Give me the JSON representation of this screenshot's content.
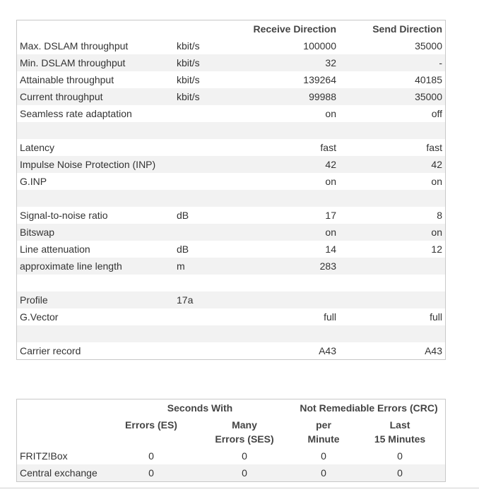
{
  "line_table": {
    "columns": [
      "Receive Direction",
      "Send Direction"
    ],
    "rows": [
      [
        "Max. DSLAM throughput",
        "kbit/s",
        100000,
        35000
      ],
      [
        "Min. DSLAM throughput",
        "kbit/s",
        32,
        "-"
      ],
      [
        "Attainable throughput",
        "kbit/s",
        139264,
        40185
      ],
      [
        "Current throughput",
        "kbit/s",
        99988,
        35000
      ],
      [
        "Seamless rate adaptation",
        null,
        "on",
        "off"
      ],
      [
        null,
        null,
        null,
        null
      ],
      [
        "Latency",
        null,
        "fast",
        "fast"
      ],
      [
        "Impulse Noise Protection (INP)",
        null,
        42,
        42
      ],
      [
        "G.INP",
        null,
        "on",
        "on"
      ],
      [
        null,
        null,
        null,
        null
      ],
      [
        "Signal-to-noise ratio",
        "dB",
        17,
        8
      ],
      [
        "Bitswap",
        null,
        "on",
        "on"
      ],
      [
        "Line attenuation",
        "dB",
        14,
        12
      ],
      [
        "approximate line length",
        "m",
        283,
        null
      ],
      [
        null,
        null,
        null,
        null
      ],
      [
        "Profile",
        "17a",
        null,
        null
      ],
      [
        "G.Vector",
        null,
        "full",
        "full"
      ],
      [
        null,
        null,
        null,
        null
      ],
      [
        "Carrier record",
        null,
        "A43",
        "A43"
      ]
    ]
  },
  "error_table": {
    "groups": [
      "Seconds With",
      "Not Remediable Errors (CRC)"
    ],
    "columns": [
      [
        "Errors (ES)"
      ],
      [
        "Many",
        "Errors (SES)"
      ],
      [
        "per",
        "Minute"
      ],
      [
        "Last",
        "15 Minutes"
      ]
    ],
    "rows": [
      [
        "FRITZ!Box",
        0,
        0,
        0,
        0
      ],
      [
        "Central exchange",
        0,
        0,
        0,
        0
      ]
    ]
  }
}
